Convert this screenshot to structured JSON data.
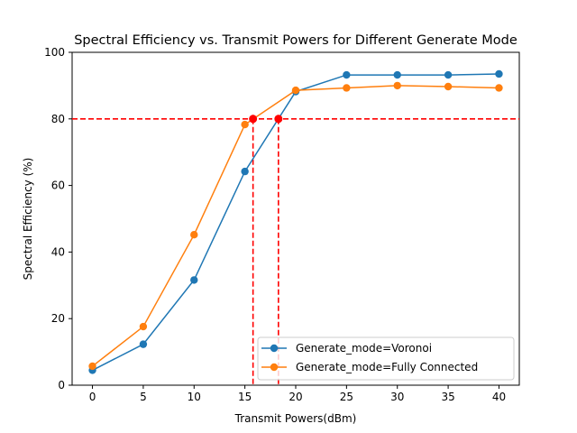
{
  "chart_data": {
    "type": "line",
    "title": "Spectral Efficiency vs. Transmit Powers for Different Generate Mode",
    "xlabel": "Transmit Powers(dBm)",
    "ylabel": "Spectral Efficiency (%)",
    "xlim": [
      -2,
      42
    ],
    "ylim": [
      0,
      100
    ],
    "xticks": [
      0,
      5,
      10,
      15,
      20,
      25,
      30,
      35,
      40
    ],
    "yticks": [
      0,
      20,
      40,
      60,
      80,
      100
    ],
    "grid": false,
    "legend_position": "lower-right",
    "series": [
      {
        "name": "Generate_mode=Voronoi",
        "color": "#1f77b4",
        "x": [
          0,
          5,
          10,
          15,
          20,
          25,
          30,
          35,
          40
        ],
        "y": [
          4.5,
          12.3,
          31.6,
          64.2,
          88.2,
          93.2,
          93.2,
          93.2,
          93.5
        ]
      },
      {
        "name": "Generate_mode=Fully Connected",
        "color": "#ff7f0e",
        "x": [
          0,
          5,
          10,
          15,
          20,
          25,
          30,
          35,
          40
        ],
        "y": [
          5.7,
          17.6,
          45.2,
          78.3,
          88.6,
          89.3,
          90.0,
          89.7,
          89.3
        ]
      }
    ],
    "threshold": {
      "y": 80,
      "color": "#ff0000",
      "crossings": [
        {
          "x": 15.8,
          "y": 80
        },
        {
          "x": 18.3,
          "y": 80
        }
      ]
    }
  }
}
